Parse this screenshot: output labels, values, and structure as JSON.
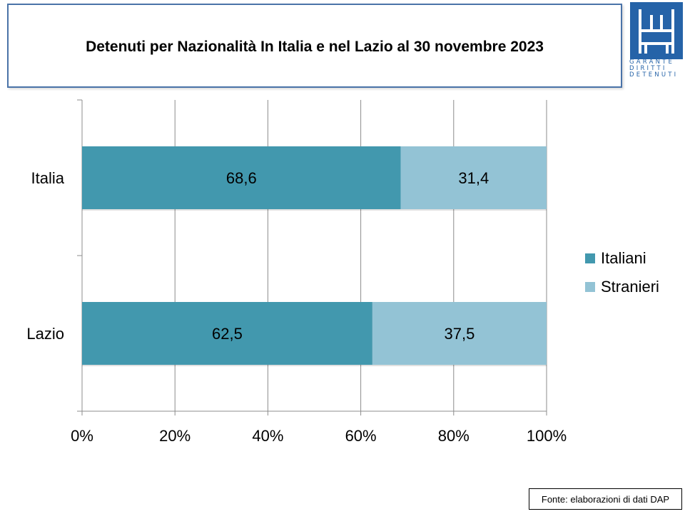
{
  "title": "Detenuti per Nazionalità In Italia e nel Lazio al 30 novembre 2023",
  "logo": {
    "lines": [
      "GARANTE",
      "DIRITTI",
      "DETENUTI"
    ],
    "color": "#2563a8"
  },
  "source": "Fonte: elaborazioni di dati DAP",
  "chart_data": {
    "type": "bar",
    "orientation": "horizontal",
    "stacked": "percent",
    "categories": [
      "Italia",
      "Lazio"
    ],
    "series": [
      {
        "name": "Italiani",
        "values": [
          68.6,
          62.5
        ],
        "labels": [
          "68,6",
          "62,5"
        ],
        "color": "#4298ae"
      },
      {
        "name": "Stranieri",
        "values": [
          31.4,
          37.5
        ],
        "labels": [
          "31,4",
          "37,5"
        ],
        "color": "#93c3d5"
      }
    ],
    "xlim": [
      0,
      100
    ],
    "xticks": [
      "0%",
      "20%",
      "40%",
      "60%",
      "80%",
      "100%"
    ],
    "grid": true,
    "legend_position": "right"
  }
}
